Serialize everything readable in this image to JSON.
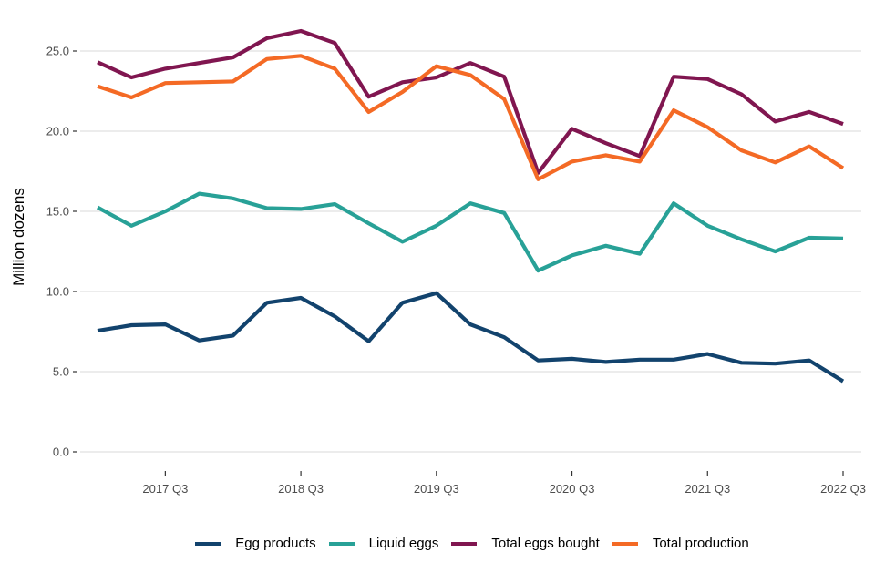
{
  "chart_data": {
    "type": "line",
    "title": "",
    "xlabel": "",
    "ylabel": "Million dozens",
    "ylim": [
      0,
      26.5
    ],
    "yticks": [
      0,
      5,
      10,
      15,
      20,
      25
    ],
    "ytick_labels": [
      "0.0",
      "5.0",
      "10.0",
      "15.0",
      "20.0",
      "25.0"
    ],
    "grid": true,
    "legend_position": "bottom",
    "x": [
      "2017 Q1",
      "2017 Q2",
      "2017 Q3",
      "2017 Q4",
      "2018 Q1",
      "2018 Q2",
      "2018 Q3",
      "2018 Q4",
      "2019 Q1",
      "2019 Q2",
      "2019 Q3",
      "2019 Q4",
      "2020 Q1",
      "2020 Q2",
      "2020 Q3",
      "2020 Q4",
      "2021 Q1",
      "2021 Q2",
      "2021 Q3",
      "2021 Q4",
      "2022 Q1",
      "2022 Q2",
      "2022 Q3"
    ],
    "xtick_labels": [
      "2017 Q3",
      "2018 Q3",
      "2019 Q3",
      "2020 Q3",
      "2021 Q3",
      "2022 Q3"
    ],
    "series": [
      {
        "name": "Egg products",
        "color": "#12436D",
        "values": [
          7.55,
          7.9,
          7.95,
          6.95,
          7.25,
          9.3,
          9.6,
          8.45,
          6.9,
          9.3,
          9.9,
          7.95,
          7.15,
          5.7,
          5.8,
          5.6,
          5.75,
          5.75,
          6.1,
          5.55,
          5.5,
          5.7,
          4.4
        ]
      },
      {
        "name": "Liquid eggs",
        "color": "#28A197",
        "values": [
          15.25,
          14.1,
          15.0,
          16.1,
          15.8,
          15.2,
          15.15,
          15.45,
          14.25,
          13.1,
          14.1,
          15.5,
          14.9,
          11.3,
          12.25,
          12.85,
          12.35,
          15.5,
          14.1,
          13.25,
          12.5,
          13.35,
          13.3
        ]
      },
      {
        "name": "Total eggs bought",
        "color": "#801650",
        "values": [
          24.3,
          23.35,
          23.9,
          24.25,
          24.6,
          25.8,
          26.25,
          25.5,
          22.15,
          23.05,
          23.35,
          24.25,
          23.4,
          17.4,
          20.15,
          19.25,
          18.45,
          23.4,
          23.25,
          22.3,
          20.6,
          21.2,
          20.45
        ]
      },
      {
        "name": "Total production",
        "color": "#F46A25",
        "values": [
          22.8,
          22.1,
          23.0,
          23.05,
          23.1,
          24.5,
          24.7,
          23.9,
          21.2,
          22.45,
          24.05,
          23.5,
          22.0,
          17.0,
          18.1,
          18.5,
          18.1,
          21.3,
          20.25,
          18.8,
          18.05,
          19.05,
          17.7
        ]
      }
    ]
  }
}
